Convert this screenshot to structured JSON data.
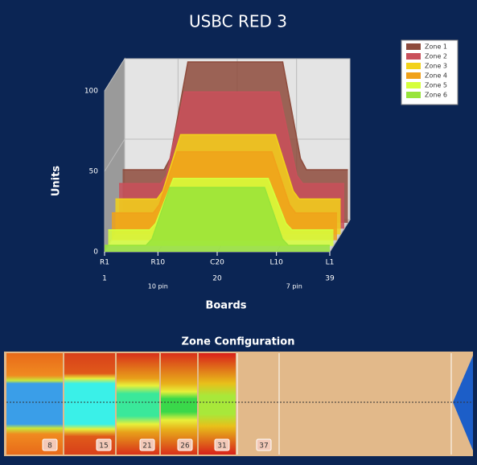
{
  "chart_data": {
    "type": "area3d",
    "title": "USBC RED 3",
    "x_label": "Boards",
    "y_label": "Units",
    "x": [
      1,
      8,
      9,
      12,
      28,
      31,
      32,
      39
    ],
    "series": [
      {
        "name": "Zone 1",
        "color": "#8e4b3c",
        "values": [
          33,
          33,
          40,
          100,
          100,
          40,
          33,
          33
        ]
      },
      {
        "name": "Zone 2",
        "color": "#c9505a",
        "values": [
          28,
          28,
          33,
          85,
          85,
          33,
          28,
          28
        ]
      },
      {
        "name": "Zone 3",
        "color": "#f2d21a",
        "values": [
          22,
          22,
          27,
          62,
          62,
          27,
          22,
          22
        ]
      },
      {
        "name": "Zone 4",
        "color": "#f0a21a",
        "values": [
          17,
          17,
          22,
          55,
          55,
          22,
          17,
          17
        ]
      },
      {
        "name": "Zone 5",
        "color": "#d6ff3c",
        "values": [
          10,
          10,
          14,
          42,
          42,
          14,
          10,
          10
        ]
      },
      {
        "name": "Zone 6",
        "color": "#98e43a",
        "values": [
          4,
          4,
          8,
          40,
          40,
          8,
          4,
          4
        ]
      }
    ],
    "xlim": [
      1,
      39
    ],
    "ylim": [
      0,
      100
    ],
    "yticks": [
      0,
      50,
      100
    ],
    "xticks": [
      {
        "value": 1,
        "label": "R1"
      },
      {
        "value": 10,
        "label": "R10"
      },
      {
        "value": 20,
        "label": "C20"
      },
      {
        "value": 30,
        "label": "L10"
      },
      {
        "value": 39,
        "label": "L1"
      }
    ],
    "xticks_secondary": [
      1,
      20,
      39
    ],
    "annotations": [
      "10 pin",
      "7 pin"
    ],
    "grid": true,
    "legend": "top-right"
  },
  "zone_configuration": {
    "title": "Zone Configuration",
    "markers": [
      8,
      15,
      21,
      26,
      31,
      37
    ]
  }
}
